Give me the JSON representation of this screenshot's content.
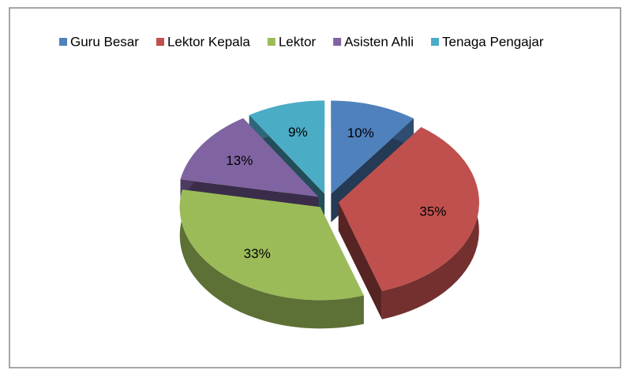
{
  "chart_data": {
    "type": "pie",
    "categories": [
      "Guru Besar",
      "Lektor Kepala",
      "Lektor",
      "Asisten Ahli",
      "Tenaga Pengajar"
    ],
    "values": [
      10,
      35,
      33,
      13,
      9
    ],
    "value_labels": [
      "10%",
      "35%",
      "33%",
      "13%",
      "9%"
    ],
    "colors": [
      "#4f81bd",
      "#c0504d",
      "#9bbb59",
      "#8064a2",
      "#4bacc6"
    ],
    "legend": "top"
  }
}
